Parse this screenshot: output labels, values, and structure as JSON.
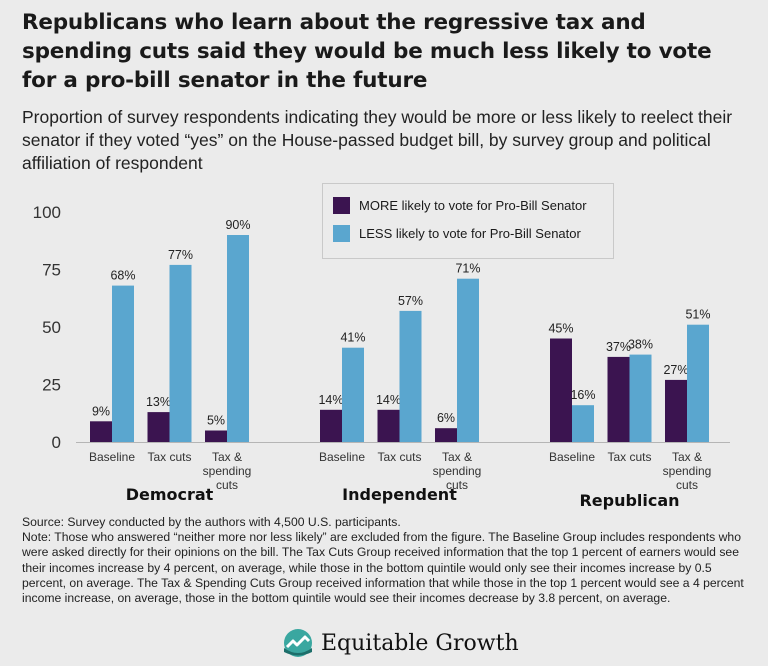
{
  "title": "Republicans who learn about the regressive tax and spending cuts said they would be much less likely to vote for a pro-bill senator in the future",
  "subtitle": "Proportion of survey respondents indicating they would be more or less likely to reelect their senator if they voted “yes” on the House-passed budget bill, by survey group and political affiliation of respondent",
  "chart_data": {
    "type": "bar",
    "ylim": [
      0,
      100
    ],
    "yticks": [
      0,
      25,
      50,
      75,
      100
    ],
    "groups": [
      {
        "name": "Democrat",
        "categories": [
          [
            "Baseline"
          ],
          [
            "Tax cuts"
          ],
          [
            "Tax &",
            "spending",
            "cuts"
          ]
        ],
        "more": [
          9,
          13,
          5
        ],
        "less": [
          68,
          77,
          90
        ]
      },
      {
        "name": "Independent",
        "categories": [
          [
            "Baseline"
          ],
          [
            "Tax cuts"
          ],
          [
            "Tax &",
            "spending",
            "cuts"
          ]
        ],
        "more": [
          14,
          14,
          6
        ],
        "less": [
          41,
          57,
          71
        ]
      },
      {
        "name": "Republican",
        "categories": [
          [
            "Baseline"
          ],
          [
            "Tax cuts"
          ],
          [
            "Tax &",
            "spending",
            "cuts"
          ]
        ],
        "more": [
          45,
          37,
          27
        ],
        "less": [
          16,
          38,
          51
        ]
      }
    ],
    "series": [
      {
        "name": "MORE likely to vote for Pro-Bill Senator",
        "key": "more",
        "color": "#3b1450"
      },
      {
        "name": "LESS likely to vote for Pro-Bill Senator",
        "key": "less",
        "color": "#5aa6cf"
      }
    ],
    "value_suffix": "%"
  },
  "legend": {
    "more_label": "MORE likely to vote for Pro-Bill Senator",
    "less_label": "LESS likely to vote for Pro-Bill Senator"
  },
  "source": {
    "line1": "Source: Survey conducted by the authors with 4,500 U.S. participants.",
    "note": "Note: Those who answered “neither more nor less likely” are excluded from the figure. The Baseline Group includes respondents who were asked directly for their opinions on the bill.  The Tax Cuts Group received information that the top 1 percent of earners would see their incomes increase by 4 percent, on average, while those in the bottom quintile would only see their incomes increase by 0.5 percent, on average. The Tax & Spending Cuts Group received information that while those in the top 1 percent would see a 4 percent income increase, on average, those in the bottom quintile would see their incomes decrease by 3.8 percent, on average."
  },
  "logo": {
    "text": "Equitable Growth",
    "icon": "equitable-growth-logo-icon",
    "colors": [
      "#3aa7a0",
      "#1d6e6a"
    ]
  }
}
